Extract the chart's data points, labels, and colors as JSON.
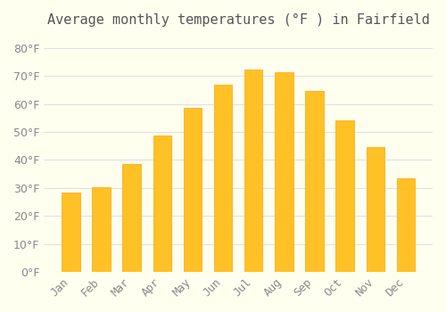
{
  "title": "Average monthly temperatures (°F ) in Fairfield",
  "months": [
    "Jan",
    "Feb",
    "Mar",
    "Apr",
    "May",
    "Jun",
    "Jul",
    "Aug",
    "Sep",
    "Oct",
    "Nov",
    "Dec"
  ],
  "values": [
    28.5,
    30.3,
    38.7,
    48.7,
    58.7,
    67.0,
    72.3,
    71.2,
    64.7,
    54.0,
    44.5,
    33.3
  ],
  "bar_color_main": "#FFC125",
  "bar_color_edge": "#FFA500",
  "background_color": "#FFFFF0",
  "grid_color": "#E0E0E0",
  "text_color": "#888888",
  "title_color": "#555555",
  "ylim": [
    0,
    85
  ],
  "yticks": [
    0,
    10,
    20,
    30,
    40,
    50,
    60,
    70,
    80
  ],
  "title_fontsize": 11,
  "tick_fontsize": 9
}
